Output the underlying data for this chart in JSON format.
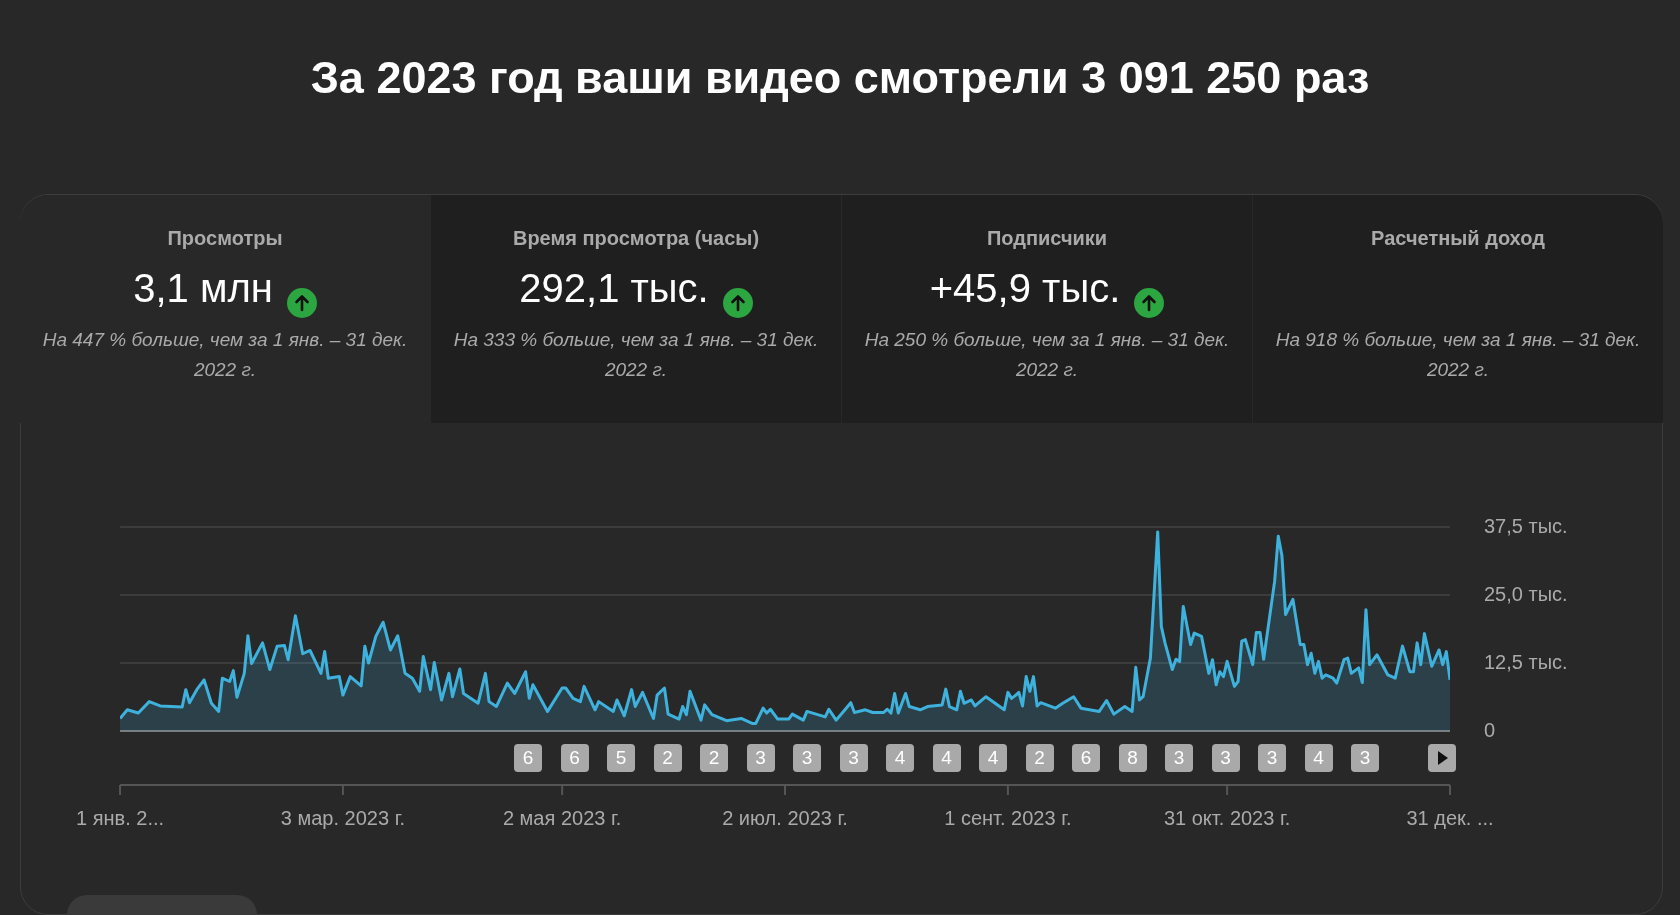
{
  "chart_data": [
    {
      "type": "area",
      "title": "За 2023 год ваши видео смотрели 3 091 250 раз",
      "x": [
        "2023-01-01",
        "2023-01-03",
        "2023-01-06",
        "2023-01-09",
        "2023-01-12",
        "2023-01-18",
        "2023-01-19",
        "2023-01-20",
        "2023-01-22",
        "2023-01-24",
        "2023-01-26",
        "2023-01-28",
        "2023-01-29",
        "2023-01-31",
        "2023-02-01",
        "2023-02-02",
        "2023-02-04",
        "2023-02-05",
        "2023-02-06",
        "2023-02-09",
        "2023-02-11",
        "2023-02-13",
        "2023-02-15",
        "2023-02-16",
        "2023-02-18",
        "2023-02-20",
        "2023-02-22",
        "2023-02-25",
        "2023-02-26",
        "2023-02-27",
        "2023-03-02",
        "2023-03-03",
        "2023-03-05",
        "2023-03-08",
        "2023-03-09",
        "2023-03-10",
        "2023-03-12",
        "2023-03-14",
        "2023-03-16",
        "2023-03-18",
        "2023-03-20",
        "2023-03-22",
        "2023-03-24",
        "2023-03-25",
        "2023-03-27",
        "2023-03-28",
        "2023-03-30",
        "2023-04-01",
        "2023-04-02",
        "2023-04-04",
        "2023-04-05",
        "2023-04-09",
        "2023-04-11",
        "2023-04-12",
        "2023-04-14",
        "2023-04-17",
        "2023-04-19",
        "2023-04-22",
        "2023-04-23",
        "2023-04-24",
        "2023-04-28",
        "2023-05-02",
        "2023-05-03",
        "2023-05-05",
        "2023-05-07",
        "2023-05-08",
        "2023-05-11",
        "2023-05-12",
        "2023-05-16",
        "2023-05-17",
        "2023-05-19",
        "2023-05-21",
        "2023-05-22",
        "2023-05-24",
        "2023-05-27",
        "2023-05-28",
        "2023-05-30",
        "2023-05-31",
        "2023-06-03",
        "2023-06-04",
        "2023-06-05",
        "2023-06-06",
        "2023-06-09",
        "2023-06-10",
        "2023-06-12",
        "2023-06-16",
        "2023-06-20",
        "2023-06-23",
        "2023-06-24",
        "2023-06-26",
        "2023-06-27",
        "2023-06-28",
        "2023-06-30",
        "2023-07-03",
        "2023-07-04",
        "2023-07-07",
        "2023-07-08",
        "2023-07-13",
        "2023-07-14",
        "2023-07-16",
        "2023-07-18",
        "2023-07-20",
        "2023-07-21",
        "2023-07-24",
        "2023-07-26",
        "2023-07-29",
        "2023-07-30",
        "2023-07-31",
        "2023-08-01",
        "2023-08-02",
        "2023-08-04",
        "2023-08-05",
        "2023-08-08",
        "2023-08-10",
        "2023-08-14",
        "2023-08-15",
        "2023-08-16",
        "2023-08-18",
        "2023-08-19",
        "2023-08-20",
        "2023-08-22",
        "2023-08-23",
        "2023-08-26",
        "2023-08-31",
        "2023-09-01",
        "2023-09-02",
        "2023-09-03",
        "2023-09-04",
        "2023-09-05",
        "2023-09-06",
        "2023-09-07",
        "2023-09-08",
        "2023-09-09",
        "2023-09-10",
        "2023-09-14",
        "2023-09-16",
        "2023-09-19",
        "2023-09-21",
        "2023-09-26",
        "2023-09-28",
        "2023-09-30",
        "2023-10-03",
        "2023-10-05",
        "2023-10-06",
        "2023-10-07",
        "2023-10-08",
        "2023-10-10",
        "2023-10-12",
        "2023-10-13",
        "2023-10-14",
        "2023-10-16",
        "2023-10-17",
        "2023-10-18",
        "2023-10-19",
        "2023-10-21",
        "2023-10-22",
        "2023-10-24",
        "2023-10-26",
        "2023-10-27",
        "2023-10-28",
        "2023-10-29",
        "2023-10-30",
        "2023-10-31",
        "2023-11-02",
        "2023-11-03",
        "2023-11-04",
        "2023-11-05",
        "2023-11-07",
        "2023-11-08",
        "2023-11-09",
        "2023-11-10",
        "2023-11-13",
        "2023-11-14",
        "2023-11-15",
        "2023-11-16",
        "2023-11-18",
        "2023-11-20",
        "2023-11-21",
        "2023-11-22",
        "2023-11-23",
        "2023-11-24",
        "2023-11-25",
        "2023-11-26",
        "2023-11-27",
        "2023-11-29",
        "2023-11-30",
        "2023-12-02",
        "2023-12-03",
        "2023-12-04",
        "2023-12-06",
        "2023-12-07",
        "2023-12-08",
        "2023-12-09",
        "2023-12-11",
        "2023-12-14",
        "2023-12-16",
        "2023-12-18",
        "2023-12-20",
        "2023-12-21",
        "2023-12-22",
        "2023-12-23",
        "2023-12-24",
        "2023-12-26",
        "2023-12-28",
        "2023-12-29",
        "2023-12-30",
        "2023-12-31"
      ],
      "series": [
        {
          "color": "#3eb1dc",
          "values": [
            2.3,
            3.9,
            3.3,
            5.4,
            4.6,
            4.4,
            7.6,
            5.2,
            7.6,
            9.4,
            5.1,
            3.6,
            9.7,
            9.1,
            11.1,
            6.2,
            10.6,
            17.5,
            12.4,
            16.2,
            11.3,
            15.6,
            15.7,
            13.1,
            21.2,
            14.2,
            14.8,
            10.6,
            14.6,
            9.7,
            10.0,
            6.6,
            10.0,
            8.3,
            15.6,
            12.5,
            17.4,
            20.0,
            14.9,
            17.5,
            10.6,
            9.7,
            7.3,
            13.7,
            7.6,
            12.6,
            5.7,
            10.6,
            6.3,
            11.4,
            6.9,
            5.1,
            10.6,
            5.4,
            4.5,
            8.8,
            6.9,
            10.9,
            6.0,
            8.5,
            3.6,
            7.9,
            7.9,
            6.0,
            5.4,
            8.2,
            3.9,
            5.4,
            3.6,
            5.7,
            2.8,
            7.6,
            4.5,
            7.1,
            2.3,
            6.6,
            7.9,
            3.1,
            2.2,
            4.5,
            3.0,
            7.3,
            2.0,
            4.8,
            3.0,
            1.9,
            2.3,
            1.4,
            1.4,
            4.2,
            3.3,
            4.0,
            2.2,
            2.2,
            3.1,
            2.0,
            3.6,
            2.6,
            4.0,
            2.0,
            3.6,
            5.2,
            3.4,
            3.9,
            3.4,
            3.4,
            4.0,
            3.3,
            6.9,
            3.3,
            6.9,
            4.5,
            3.9,
            4.5,
            4.8,
            7.7,
            4.5,
            3.9,
            7.3,
            5.1,
            5.7,
            4.6,
            6.3,
            3.9,
            7.1,
            6.0,
            6.5,
            7.1,
            4.6,
            10.0,
            7.3,
            10.0,
            4.6,
            5.2,
            4.2,
            5.1,
            6.3,
            4.2,
            3.6,
            5.6,
            3.1,
            4.5,
            3.6,
            11.7,
            5.7,
            6.3,
            13.4,
            36.6,
            19.2,
            16.2,
            11.3,
            13.2,
            12.8,
            22.9,
            15.9,
            18.0,
            17.4,
            10.6,
            13.1,
            8.5,
            10.9,
            10.0,
            12.8,
            8.2,
            9.1,
            16.5,
            16.8,
            12.2,
            18.1,
            18.1,
            13.2,
            27.5,
            35.8,
            32.2,
            21.4,
            24.2,
            15.9,
            15.9,
            12.2,
            14.3,
            10.6,
            12.8,
            9.7,
            10.3,
            9.7,
            8.8,
            13.1,
            13.4,
            10.6,
            11.6,
            8.9,
            22.3,
            12.2,
            14.0,
            10.3,
            9.7,
            15.6,
            10.9,
            10.9,
            16.2,
            12.2,
            17.9,
            11.9,
            14.9,
            12.2,
            14.6,
            9.4
          ]
        }
      ],
      "xlim": [
        "2023-01-01",
        "2023-12-31"
      ],
      "xticks": [
        {
          "value": "2023-01-01",
          "label": "1 янв. 2..."
        },
        {
          "value": "2023-03-03",
          "label": "3 мар. 2023 г."
        },
        {
          "value": "2023-05-02",
          "label": "2 мая 2023 г."
        },
        {
          "value": "2023-07-02",
          "label": "2 июл. 2023 г."
        },
        {
          "value": "2023-09-01",
          "label": "1 сент. 2023 г."
        },
        {
          "value": "2023-10-31",
          "label": "31 окт. 2023 г."
        },
        {
          "value": "2023-12-31",
          "label": "31 дек. ..."
        }
      ],
      "ylim": [
        0,
        37.5
      ],
      "yticks": [
        0,
        {
          "value": 12.5,
          "label": "12,5 тыс."
        },
        {
          "value": 25,
          "label": "25,0 тыс."
        },
        {
          "value": 37.5,
          "label": "37,5 тыс."
        }
      ],
      "grid": "y",
      "annotations": [
        "6",
        "6",
        "5",
        "2",
        "2",
        "3",
        "3",
        "3",
        "4",
        "4",
        "4",
        "2",
        "6",
        "8",
        "3",
        "3",
        "3",
        "4",
        "3"
      ]
    },
    {
      "type": "other",
      "title": "Просмотры",
      "annotations": [
        "3,1 млн",
        "На 447 % больше, чем за 1 янв. – 31 дек. 2022 г."
      ]
    },
    {
      "type": "other",
      "title": "Время просмотра (часы)",
      "annotations": [
        "292,1 тыс.",
        "На 333 % больше, чем за 1 янв. – 31 дек. 2022 г."
      ]
    },
    {
      "type": "other",
      "title": "Подписчики",
      "annotations": [
        "+45,9 тыс.",
        "На 250 % больше, чем за 1 янв. – 31 дек. 2022 г."
      ]
    },
    {
      "type": "other",
      "title": "Расчетный доход",
      "annotations": [
        "На 918 % больше, чем за 1 янв. – 31 дек. 2022 г."
      ]
    }
  ]
}
